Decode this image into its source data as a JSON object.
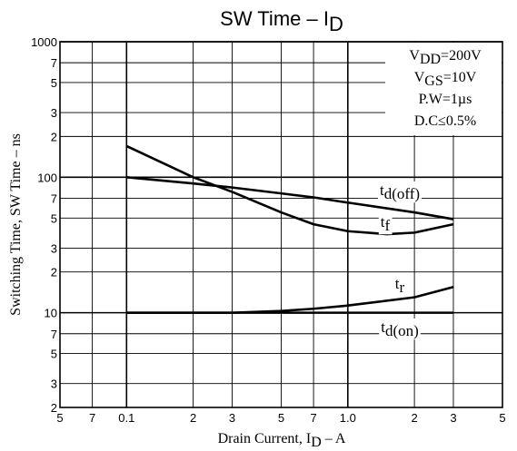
{
  "chart_data": {
    "type": "line",
    "title": [
      "SW Time  –  I",
      "D"
    ],
    "xlabel": [
      "Drain Current, I",
      "D",
      "  –  A"
    ],
    "ylabel": [
      "Switching Time, SW Time  –  ns"
    ],
    "xscale": "log",
    "yscale": "log",
    "grid": true,
    "xlim": [
      0.05,
      5
    ],
    "ylim": [
      2,
      1000
    ],
    "xticks": [
      {
        "value": 0.05,
        "label": "5"
      },
      {
        "value": 0.07,
        "label": "7"
      },
      0.1,
      {
        "value": 0.2,
        "label": "2"
      },
      {
        "value": 0.3,
        "label": "3"
      },
      {
        "value": 0.5,
        "label": "5"
      },
      {
        "value": 0.7,
        "label": "7"
      },
      {
        "value": 1,
        "label": "1.0"
      },
      2,
      3,
      5
    ],
    "yticks": [
      2,
      3,
      5,
      7,
      10,
      {
        "value": 20,
        "label": "2"
      },
      {
        "value": 30,
        "label": "3"
      },
      {
        "value": 50,
        "label": "5"
      },
      {
        "value": 70,
        "label": "7"
      },
      100,
      {
        "value": 200,
        "label": "2"
      },
      {
        "value": 300,
        "label": "3"
      },
      {
        "value": 500,
        "label": "5"
      },
      {
        "value": 700,
        "label": "7"
      },
      1000
    ],
    "annotations": [
      [
        "V",
        "DD",
        "=200V"
      ],
      [
        "V",
        "GS",
        "=10V"
      ],
      [
        "P.W=1µs"
      ],
      [
        "D.C≤0.5%"
      ]
    ],
    "series": [
      {
        "name": [
          "t",
          "d(off)"
        ],
        "color": "#000000",
        "x": [
          0.1,
          0.2,
          0.3,
          0.5,
          0.7,
          1,
          2,
          3
        ],
        "values": [
          100,
          90,
          84,
          76,
          71,
          65,
          55,
          49
        ]
      },
      {
        "name": [
          "t",
          "f"
        ],
        "color": "#000000",
        "x": [
          0.1,
          0.2,
          0.3,
          0.5,
          0.7,
          1,
          1.5,
          2,
          3
        ],
        "values": [
          170,
          100,
          78,
          55,
          45,
          40,
          38,
          39,
          45
        ]
      },
      {
        "name": [
          "t",
          "r"
        ],
        "color": "#000000",
        "x": [
          0.1,
          0.3,
          0.5,
          0.7,
          1,
          2,
          3
        ],
        "values": [
          10,
          10,
          10.3,
          10.7,
          11.3,
          13,
          15.5
        ]
      },
      {
        "name": [
          "t",
          "d(on)"
        ],
        "color": "#000000",
        "x": [
          0.1,
          3
        ],
        "values": [
          10,
          10
        ]
      }
    ]
  }
}
